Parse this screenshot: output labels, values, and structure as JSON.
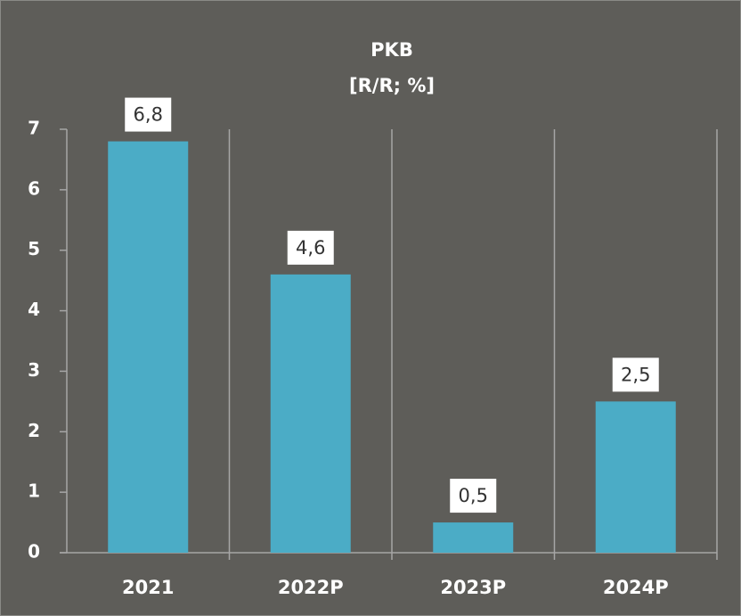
{
  "chart_data": {
    "type": "bar",
    "title": "PKB",
    "subtitle": "[R/R; %]",
    "categories": [
      "2021",
      "2022P",
      "2023P",
      "2024P"
    ],
    "values": [
      6.8,
      4.6,
      0.5,
      2.5
    ],
    "value_labels": [
      "6,8",
      "4,6",
      "0,5",
      "2,5"
    ],
    "color": "#4bacc6",
    "ylim": [
      0,
      7
    ],
    "yticks": [
      0,
      1,
      2,
      3,
      4,
      5,
      6,
      7
    ]
  }
}
